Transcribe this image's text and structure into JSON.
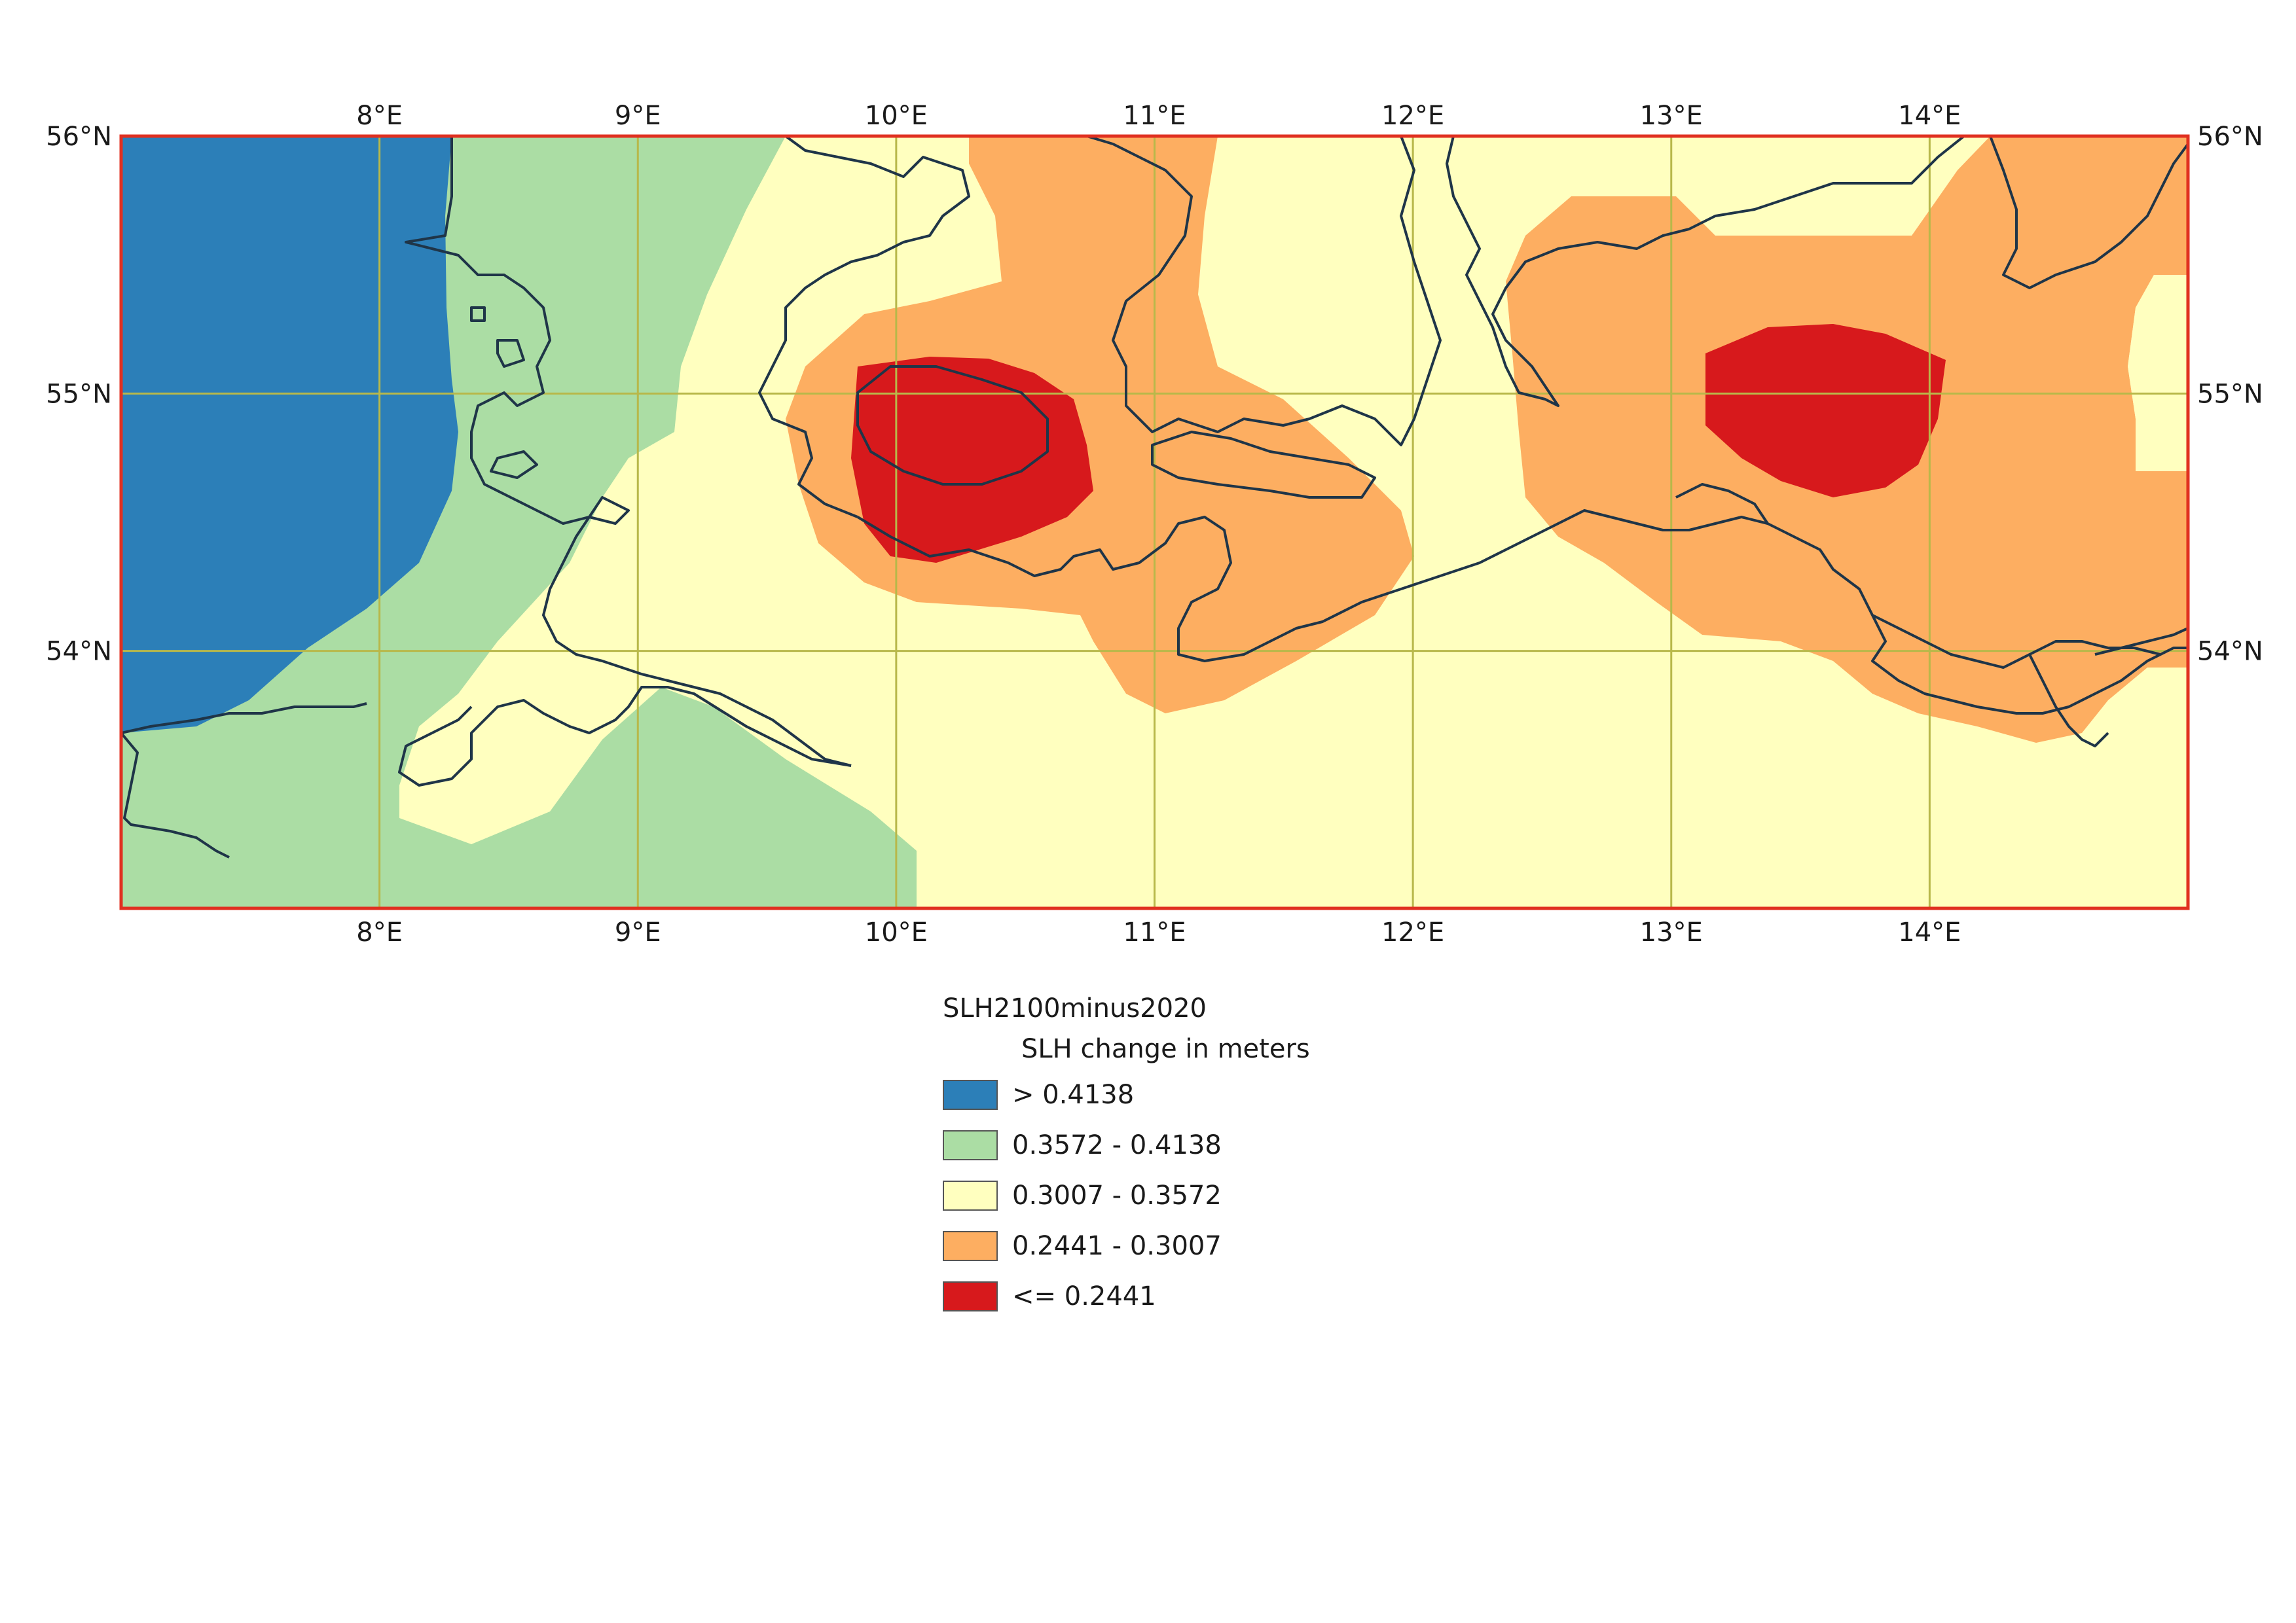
{
  "map": {
    "bounds": {
      "lon_min": 7.0,
      "lon_max": 15.0,
      "lat_min": 53.0,
      "lat_max": 56.0
    },
    "frame_color": "#e03020",
    "grid_color": "#b8b84a",
    "coast_color": "#1f3548",
    "lon_ticks": [
      {
        "value": 8,
        "label": "8°E"
      },
      {
        "value": 9,
        "label": "9°E"
      },
      {
        "value": 10,
        "label": "10°E"
      },
      {
        "value": 11,
        "label": "11°E"
      },
      {
        "value": 12,
        "label": "12°E"
      },
      {
        "value": 13,
        "label": "13°E"
      },
      {
        "value": 14,
        "label": "14°E"
      }
    ],
    "lat_ticks": [
      {
        "value": 56,
        "label": "56°N"
      },
      {
        "value": 55,
        "label": "55°N"
      },
      {
        "value": 54,
        "label": "54°N"
      }
    ]
  },
  "legend": {
    "title": "SLH2100minus2020",
    "subtitle": "SLH change in meters",
    "classes": [
      {
        "label": "> 0.4138",
        "color": "#2c7fb8"
      },
      {
        "label": "0.3572 - 0.4138",
        "color": "#abdda4"
      },
      {
        "label": "0.3007 - 0.3572",
        "color": "#ffffbf"
      },
      {
        "label": "0.2441 - 0.3007",
        "color": "#fdae61"
      },
      {
        "label": "<= 0.2441",
        "color": "#d7191c"
      }
    ]
  }
}
